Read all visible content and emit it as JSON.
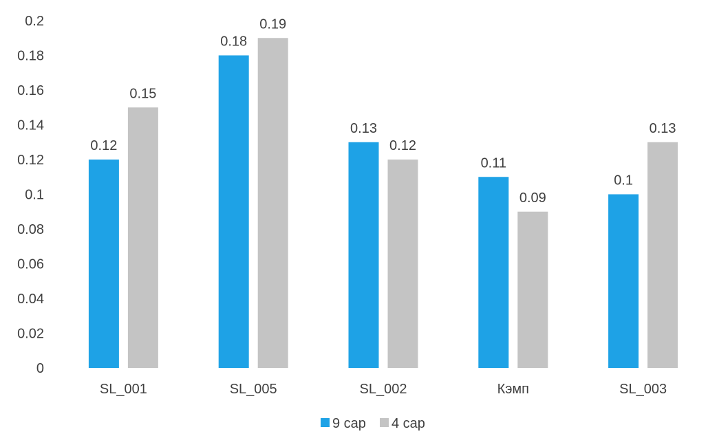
{
  "chart_data": {
    "type": "bar",
    "categories": [
      "SL_001",
      "SL_005",
      "SL_002",
      "Кэмп",
      "SL_003"
    ],
    "series": [
      {
        "name": "9 сар",
        "values": [
          0.12,
          0.18,
          0.13,
          0.11,
          0.1
        ],
        "labels": [
          "0.12",
          "0.18",
          "0.13",
          "0.11",
          "0.1"
        ],
        "color": "#1ea2e6"
      },
      {
        "name": "4 сар",
        "values": [
          0.15,
          0.19,
          0.12,
          0.09,
          0.13
        ],
        "labels": [
          "0.15",
          "0.19",
          "0.12",
          "0.09",
          "0.13"
        ],
        "color": "#c4c4c4"
      }
    ],
    "ylim": [
      0,
      0.2
    ],
    "yticks": [
      0,
      0.02,
      0.04,
      0.06,
      0.08,
      0.1,
      0.12,
      0.14,
      0.16,
      0.18,
      0.2
    ],
    "ytick_labels": [
      "0",
      "0.02",
      "0.04",
      "0.06",
      "0.08",
      "0.1",
      "0.12",
      "0.14",
      "0.16",
      "0.18",
      "0.2"
    ],
    "title": "",
    "xlabel": "",
    "ylabel": "",
    "grid": false,
    "legend_position": "bottom-center"
  }
}
